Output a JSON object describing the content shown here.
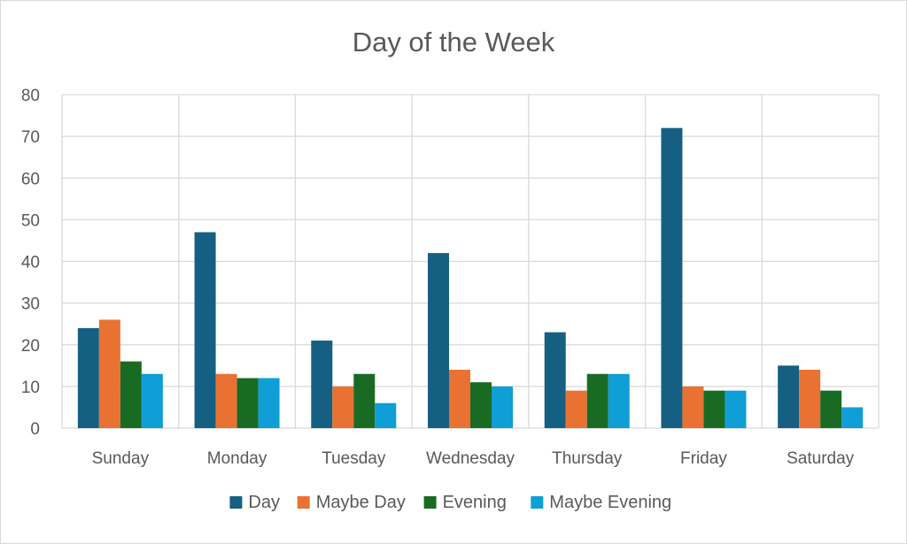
{
  "chart_data": {
    "type": "bar",
    "title": "Day of the Week",
    "xlabel": "",
    "ylabel": "",
    "ylim": [
      0,
      80
    ],
    "yticks": [
      0,
      10,
      20,
      30,
      40,
      50,
      60,
      70,
      80
    ],
    "grid": true,
    "legend_position": "bottom",
    "categories": [
      "Sunday",
      "Monday",
      "Tuesday",
      "Wednesday",
      "Thursday",
      "Friday",
      "Saturday"
    ],
    "series": [
      {
        "name": "Day",
        "color": "#156082",
        "values": [
          24,
          47,
          21,
          42,
          23,
          72,
          15
        ]
      },
      {
        "name": "Maybe Day",
        "color": "#E97132",
        "values": [
          26,
          13,
          10,
          14,
          9,
          10,
          14
        ]
      },
      {
        "name": "Evening",
        "color": "#196B24",
        "values": [
          16,
          12,
          13,
          11,
          13,
          9,
          9
        ]
      },
      {
        "name": "Maybe Evening",
        "color": "#0F9ED5",
        "values": [
          13,
          12,
          6,
          10,
          13,
          9,
          5
        ]
      }
    ]
  }
}
